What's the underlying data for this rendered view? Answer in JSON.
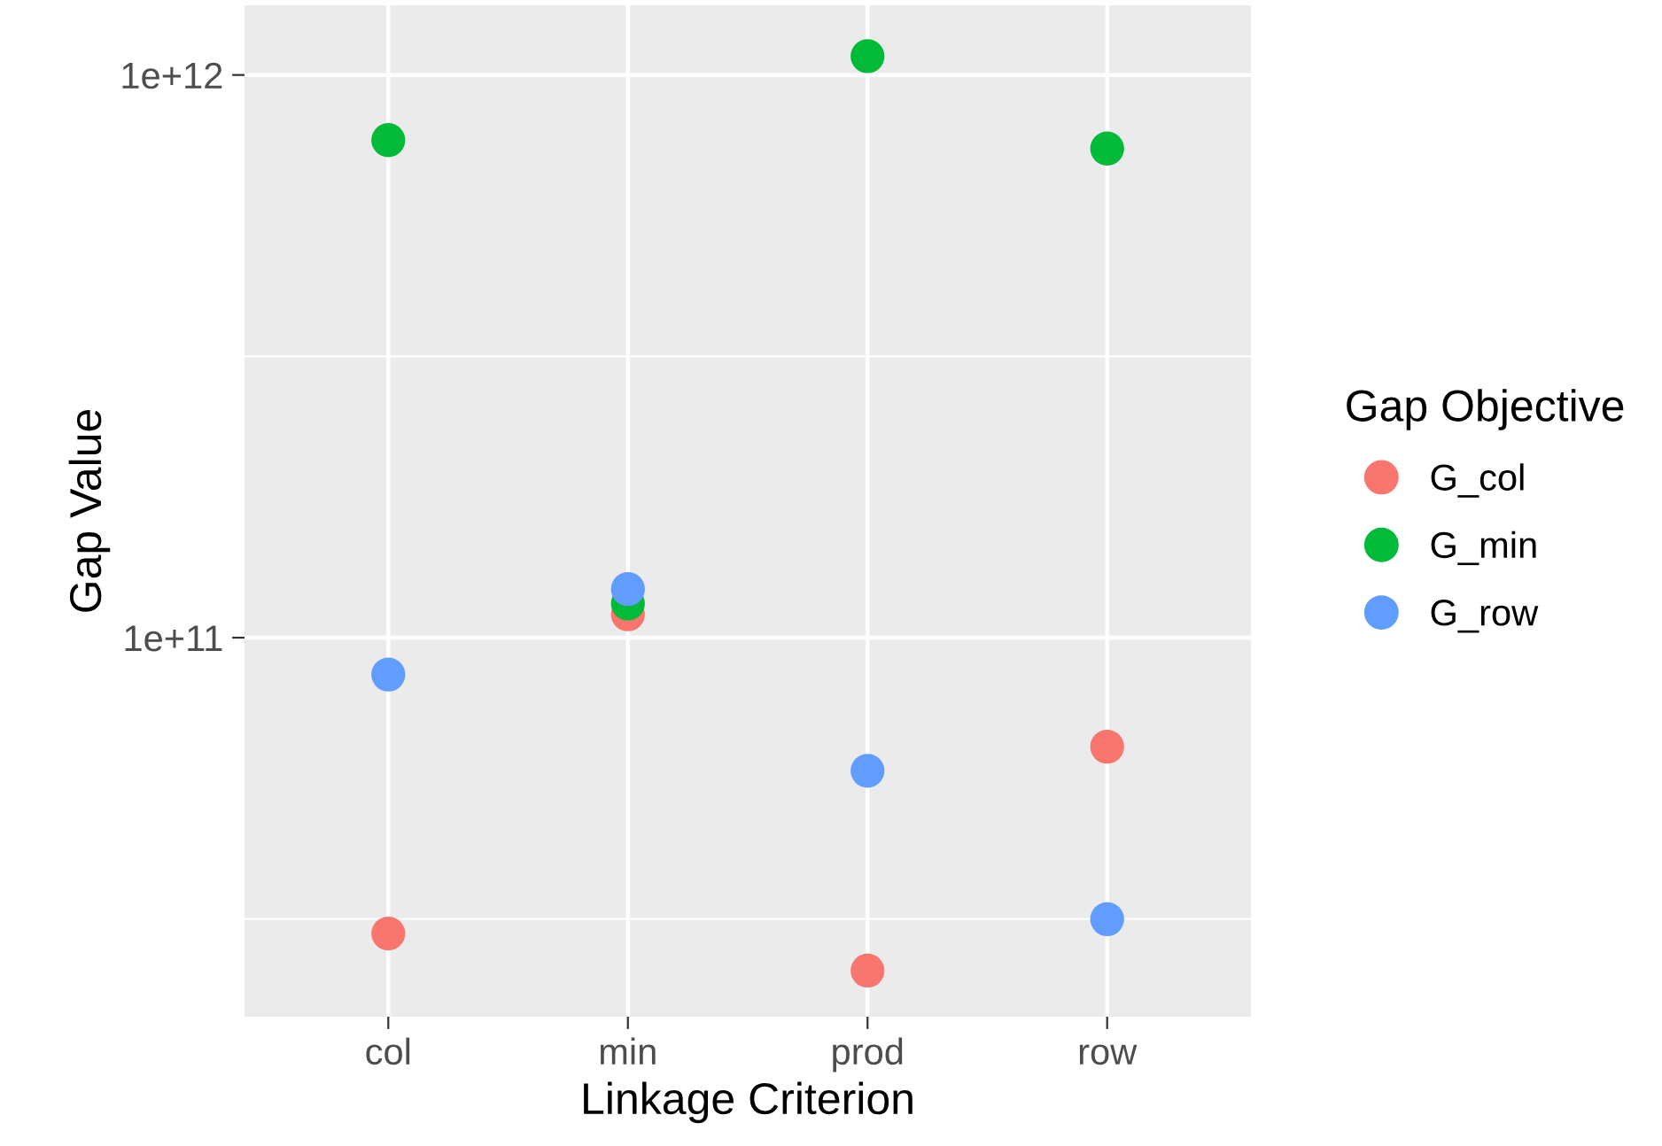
{
  "chart_data": {
    "type": "scatter",
    "xlabel": "Linkage Criterion",
    "ylabel": "Gap Value",
    "legend_title": "Gap Objective",
    "categories": [
      "col",
      "min",
      "prod",
      "row"
    ],
    "series": [
      {
        "name": "G_col",
        "color": "#f8766d",
        "values": [
          29800000000.0,
          110000000000.0,
          25600000000.0,
          64000000000.0
        ]
      },
      {
        "name": "G_min",
        "color": "#00ba38",
        "values": [
          766000000000.0,
          115000000000.0,
          1080000000000.0,
          740000000000.0
        ]
      },
      {
        "name": "G_row",
        "color": "#619cff",
        "values": [
          86000000000.0,
          122000000000.0,
          58000000000.0,
          31600000000.0
        ]
      }
    ],
    "log": "y",
    "ylim": [
      21200000000.0,
      1330000000000.0
    ],
    "yticks": [
      {
        "value": 31622776601.7,
        "label": null
      },
      {
        "value": 100000000000,
        "label": "1e+11"
      },
      {
        "value": 316227766017,
        "label": null
      },
      {
        "value": 1000000000000,
        "label": "1e+12"
      }
    ],
    "grid": true,
    "legend": "right",
    "marker": "circle"
  }
}
